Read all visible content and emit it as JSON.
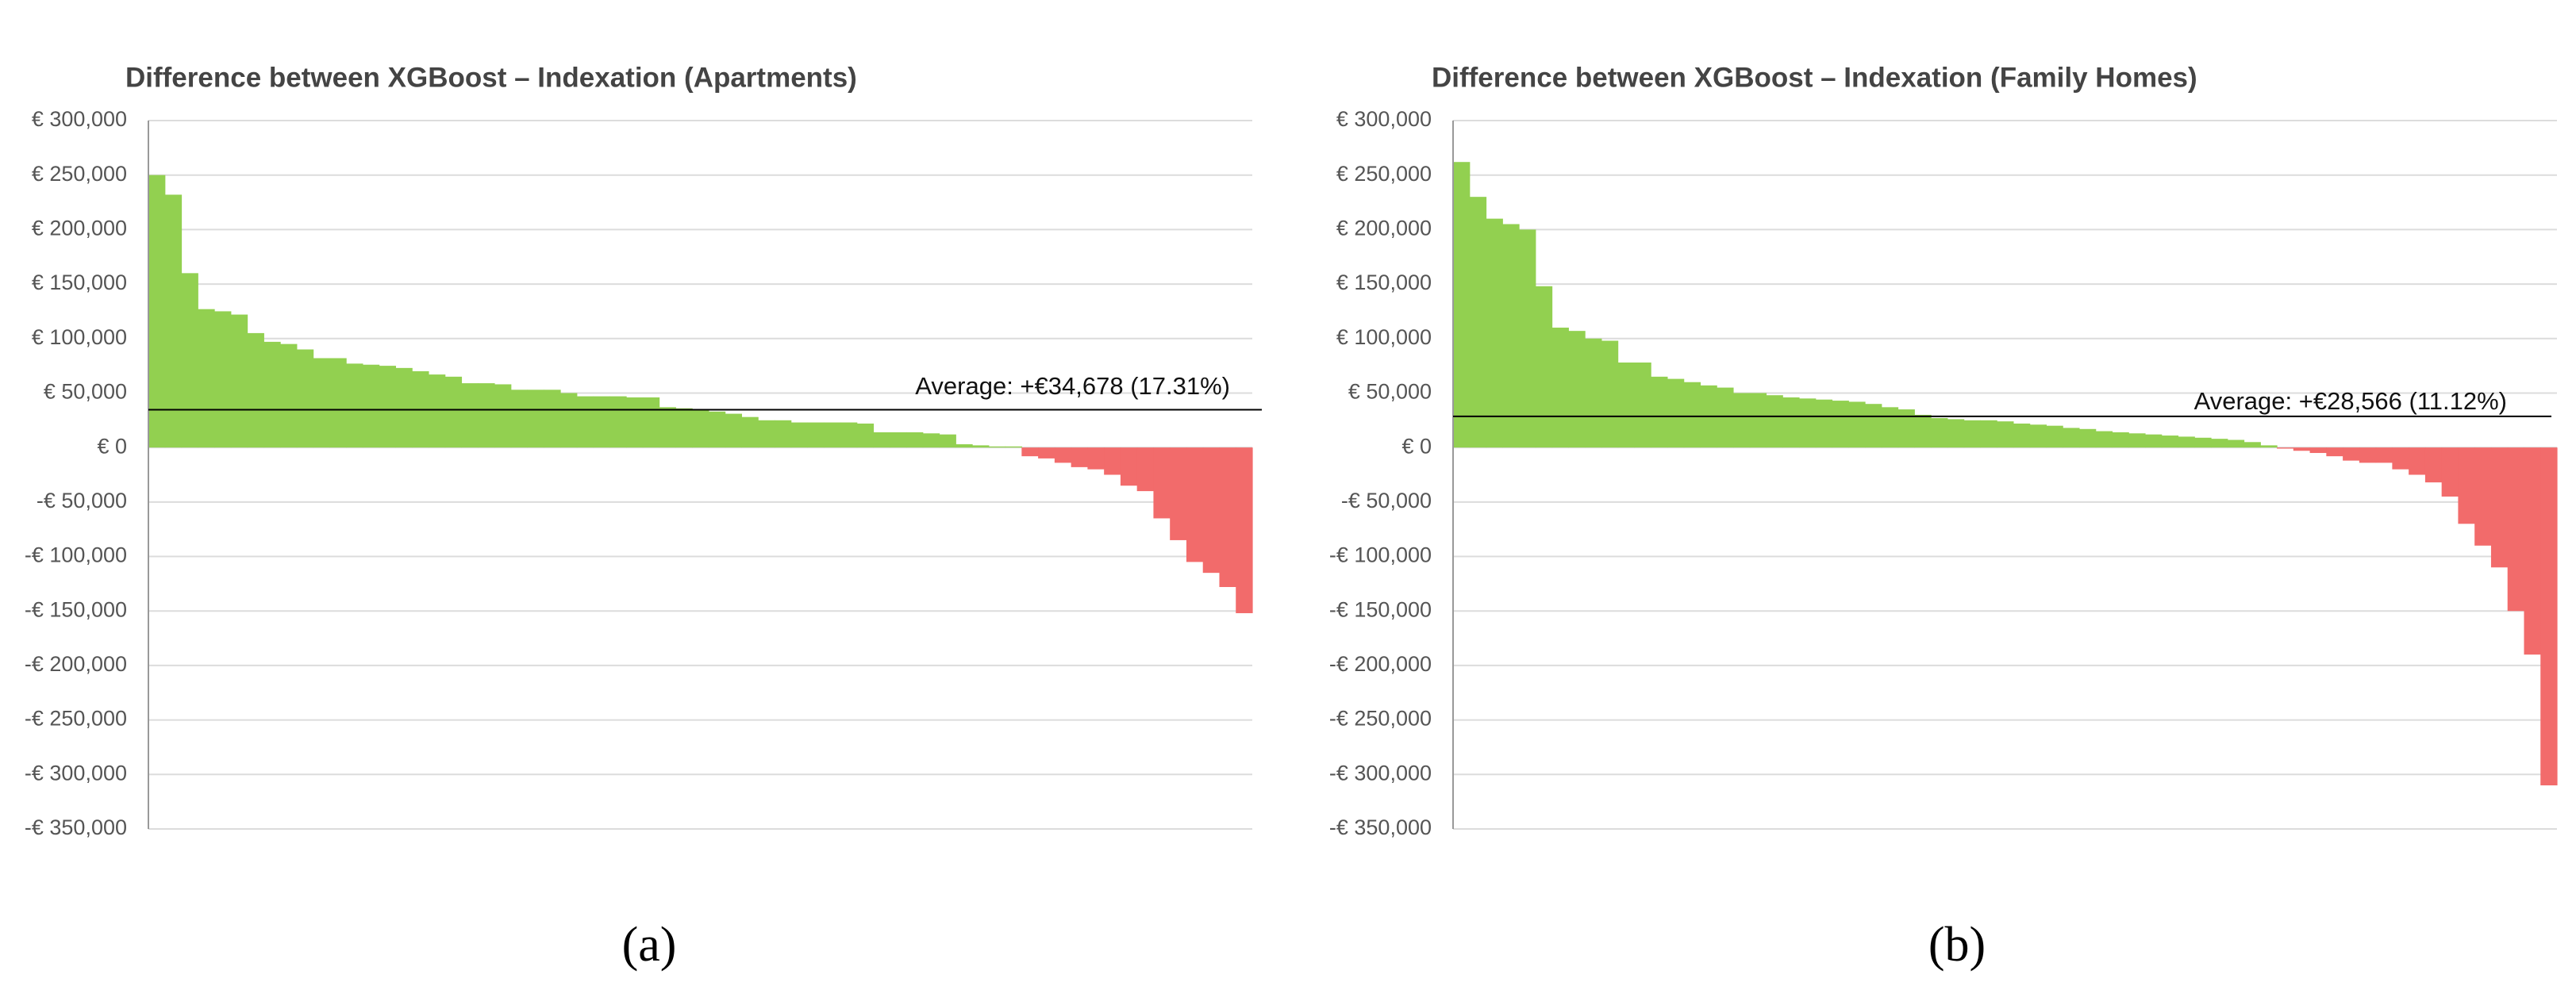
{
  "chart_data": [
    {
      "type": "bar",
      "title": "Difference between XGBoost – Indexation (Apartments)",
      "caption": "(a)",
      "annotation": "Average: +€34,678 (17.31%)",
      "average": 34678,
      "color": "#92d050",
      "negative_color": "#f26b6b",
      "grid": true,
      "ylim": [
        -350000,
        300000
      ],
      "yticks": [
        {
          "value": 300000,
          "label": "€ 300,000"
        },
        {
          "value": 250000,
          "label": "€ 250,000"
        },
        {
          "value": 200000,
          "label": "€ 200,000"
        },
        {
          "value": 150000,
          "label": "€ 150,000"
        },
        {
          "value": 100000,
          "label": "€ 100,000"
        },
        {
          "value": 50000,
          "label": "€ 50,000"
        },
        {
          "value": 0,
          "label": "€ 0"
        },
        {
          "value": -50000,
          "label": "-€ 50,000"
        },
        {
          "value": -100000,
          "label": "-€ 100,000"
        },
        {
          "value": -150000,
          "label": "-€ 150,000"
        },
        {
          "value": -200000,
          "label": "-€ 200,000"
        },
        {
          "value": -250000,
          "label": "-€ 250,000"
        },
        {
          "value": -300000,
          "label": "-€ 300,000"
        },
        {
          "value": -350000,
          "label": "-€ 350,000"
        }
      ],
      "values": [
        250000,
        232000,
        160000,
        127000,
        125000,
        122000,
        105000,
        97000,
        95000,
        90000,
        82000,
        82000,
        77000,
        76000,
        75000,
        73000,
        70000,
        67000,
        65000,
        59000,
        59000,
        58000,
        53000,
        53000,
        53000,
        50000,
        47000,
        47000,
        47000,
        46000,
        46000,
        37000,
        36000,
        35000,
        33000,
        31000,
        28000,
        25000,
        25000,
        23000,
        23000,
        23000,
        23000,
        22000,
        14000,
        14000,
        14000,
        13000,
        12000,
        3000,
        2000,
        1000,
        1000,
        -8000,
        -10000,
        -14000,
        -18000,
        -20000,
        -25000,
        -35000,
        -40000,
        -65000,
        -85000,
        -105000,
        -115000,
        -128000,
        -152000
      ]
    },
    {
      "type": "bar",
      "title": "Difference between XGBoost – Indexation (Family Homes)",
      "caption": "(b)",
      "annotation": "Average: +€28,566 (11.12%)",
      "average": 28566,
      "color": "#92d050",
      "negative_color": "#f26b6b",
      "grid": true,
      "ylim": [
        -350000,
        300000
      ],
      "yticks": [
        {
          "value": 300000,
          "label": "€ 300,000"
        },
        {
          "value": 250000,
          "label": "€ 250,000"
        },
        {
          "value": 200000,
          "label": "€ 200,000"
        },
        {
          "value": 150000,
          "label": "€ 150,000"
        },
        {
          "value": 100000,
          "label": "€ 100,000"
        },
        {
          "value": 50000,
          "label": "€ 50,000"
        },
        {
          "value": 0,
          "label": "€ 0"
        },
        {
          "value": -50000,
          "label": "-€ 50,000"
        },
        {
          "value": -100000,
          "label": "-€ 100,000"
        },
        {
          "value": -150000,
          "label": "-€ 150,000"
        },
        {
          "value": -200000,
          "label": "-€ 200,000"
        },
        {
          "value": -250000,
          "label": "-€ 250,000"
        },
        {
          "value": -300000,
          "label": "-€ 300,000"
        },
        {
          "value": -350000,
          "label": "-€ 350,000"
        }
      ],
      "values": [
        262000,
        230000,
        210000,
        205000,
        200000,
        148000,
        110000,
        107000,
        100000,
        98000,
        78000,
        78000,
        65000,
        63000,
        60000,
        57000,
        55000,
        50000,
        50000,
        48000,
        46000,
        45000,
        44000,
        43000,
        42000,
        40000,
        37000,
        35000,
        30000,
        27000,
        26000,
        25000,
        25000,
        24000,
        22000,
        21000,
        20000,
        18000,
        17000,
        15000,
        14000,
        13000,
        12000,
        11000,
        10000,
        9000,
        8000,
        7000,
        5000,
        2000,
        -1000,
        -3000,
        -5000,
        -8000,
        -12000,
        -14000,
        -14000,
        -20000,
        -25000,
        -32000,
        -45000,
        -70000,
        -90000,
        -110000,
        -150000,
        -190000,
        -310000
      ]
    }
  ]
}
